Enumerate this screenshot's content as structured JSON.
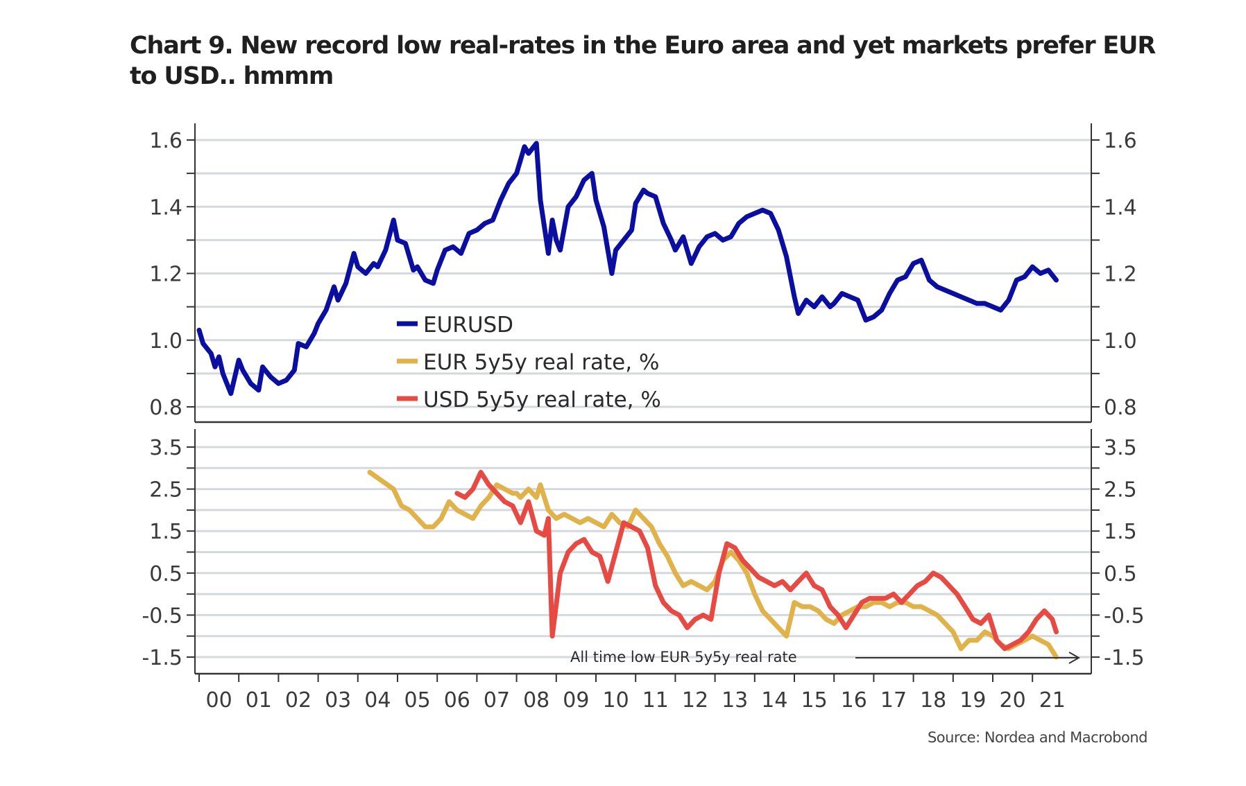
{
  "title": "Chart 9. New record low real-rates in the Euro area and yet markets prefer EUR to USD.. hmmm",
  "source": "Source: Nordea and Macrobond",
  "chart_data": [
    {
      "type": "line",
      "panel": "top",
      "title": "EURUSD",
      "ylim": [
        0.75,
        1.65
      ],
      "yticks": [
        0.8,
        1.0,
        1.2,
        1.4,
        1.6
      ],
      "ytick_labels": [
        "0.8",
        "1.0",
        "1.2",
        "1.4",
        "1.6"
      ],
      "minor_yticks": [
        0.9,
        1.1,
        1.3,
        1.5
      ],
      "grid": true,
      "xlim": [
        2000.0,
        2021.75
      ],
      "series": [
        {
          "name": "EURUSD",
          "color": "#0a0fa0",
          "x": [
            2000.0,
            2000.1,
            2000.3,
            2000.4,
            2000.5,
            2000.6,
            2000.7,
            2000.8,
            2001.0,
            2001.1,
            2001.3,
            2001.5,
            2001.6,
            2001.8,
            2002.0,
            2002.2,
            2002.4,
            2002.5,
            2002.7,
            2002.9,
            2003.0,
            2003.2,
            2003.4,
            2003.5,
            2003.7,
            2003.9,
            2004.0,
            2004.2,
            2004.4,
            2004.5,
            2004.7,
            2004.9,
            2005.0,
            2005.2,
            2005.4,
            2005.5,
            2005.7,
            2005.9,
            2006.0,
            2006.2,
            2006.4,
            2006.6,
            2006.8,
            2007.0,
            2007.2,
            2007.4,
            2007.6,
            2007.8,
            2008.0,
            2008.2,
            2008.3,
            2008.5,
            2008.6,
            2008.8,
            2008.9,
            2009.0,
            2009.1,
            2009.3,
            2009.5,
            2009.7,
            2009.9,
            2010.0,
            2010.2,
            2010.4,
            2010.5,
            2010.7,
            2010.9,
            2011.0,
            2011.2,
            2011.3,
            2011.5,
            2011.7,
            2011.9,
            2012.0,
            2012.2,
            2012.4,
            2012.6,
            2012.8,
            2013.0,
            2013.2,
            2013.4,
            2013.6,
            2013.8,
            2014.0,
            2014.2,
            2014.4,
            2014.6,
            2014.8,
            2015.0,
            2015.1,
            2015.3,
            2015.5,
            2015.7,
            2015.9,
            2016.0,
            2016.2,
            2016.4,
            2016.6,
            2016.8,
            2017.0,
            2017.2,
            2017.4,
            2017.6,
            2017.8,
            2018.0,
            2018.2,
            2018.4,
            2018.6,
            2018.8,
            2019.0,
            2019.2,
            2019.4,
            2019.6,
            2019.8,
            2020.0,
            2020.2,
            2020.4,
            2020.6,
            2020.8,
            2021.0,
            2021.2,
            2021.4,
            2021.6
          ],
          "y": [
            1.03,
            0.99,
            0.96,
            0.92,
            0.95,
            0.9,
            0.87,
            0.84,
            0.94,
            0.91,
            0.87,
            0.85,
            0.92,
            0.89,
            0.87,
            0.88,
            0.91,
            0.99,
            0.98,
            1.02,
            1.05,
            1.09,
            1.16,
            1.12,
            1.17,
            1.26,
            1.22,
            1.2,
            1.23,
            1.22,
            1.27,
            1.36,
            1.3,
            1.29,
            1.21,
            1.22,
            1.18,
            1.17,
            1.21,
            1.27,
            1.28,
            1.26,
            1.32,
            1.33,
            1.35,
            1.36,
            1.42,
            1.47,
            1.5,
            1.58,
            1.56,
            1.59,
            1.42,
            1.26,
            1.36,
            1.3,
            1.27,
            1.4,
            1.43,
            1.48,
            1.5,
            1.42,
            1.34,
            1.2,
            1.27,
            1.3,
            1.33,
            1.41,
            1.45,
            1.44,
            1.43,
            1.35,
            1.3,
            1.27,
            1.31,
            1.23,
            1.28,
            1.31,
            1.32,
            1.3,
            1.31,
            1.35,
            1.37,
            1.38,
            1.39,
            1.38,
            1.33,
            1.25,
            1.13,
            1.08,
            1.12,
            1.1,
            1.13,
            1.1,
            1.11,
            1.14,
            1.13,
            1.12,
            1.06,
            1.07,
            1.09,
            1.14,
            1.18,
            1.19,
            1.23,
            1.24,
            1.18,
            1.16,
            1.15,
            1.14,
            1.13,
            1.12,
            1.11,
            1.11,
            1.1,
            1.09,
            1.12,
            1.18,
            1.19,
            1.22,
            1.2,
            1.21,
            1.18
          ]
        }
      ],
      "legend": {
        "position": "lower-center",
        "entries": [
          {
            "label": "EURUSD",
            "color": "#0a0fa0"
          },
          {
            "label": "EUR 5y5y real rate, %",
            "color": "#e0b24a"
          },
          {
            "label": "USD 5y5y real rate, %",
            "color": "#e64a42"
          }
        ]
      }
    },
    {
      "type": "line",
      "panel": "bottom",
      "ylim": [
        -2.0,
        4.0
      ],
      "yticks": [
        -1.5,
        -0.5,
        0.5,
        1.5,
        2.5,
        3.5
      ],
      "ytick_labels": [
        "-1.5",
        "-0.5",
        "0.5",
        "1.5",
        "2.5",
        "3.5"
      ],
      "minor_yticks": [
        -1.0,
        0.0,
        1.0,
        2.0,
        3.0
      ],
      "grid": true,
      "xlim": [
        2000.0,
        2021.75
      ],
      "xticks": [
        "00",
        "01",
        "02",
        "03",
        "04",
        "05",
        "06",
        "07",
        "08",
        "09",
        "10",
        "11",
        "12",
        "13",
        "14",
        "15",
        "16",
        "17",
        "18",
        "19",
        "20",
        "21"
      ],
      "annotation": "All time low EUR 5y5y real rate",
      "series": [
        {
          "name": "EUR 5y5y real rate, %",
          "color": "#e0b24a",
          "x": [
            2004.3,
            2004.6,
            2004.9,
            2005.1,
            2005.3,
            2005.5,
            2005.7,
            2005.9,
            2006.1,
            2006.3,
            2006.5,
            2006.7,
            2006.9,
            2007.1,
            2007.3,
            2007.5,
            2007.7,
            2007.9,
            2008.0,
            2008.1,
            2008.3,
            2008.5,
            2008.6,
            2008.8,
            2009.0,
            2009.2,
            2009.4,
            2009.6,
            2009.8,
            2010.0,
            2010.2,
            2010.4,
            2010.6,
            2010.8,
            2011.0,
            2011.2,
            2011.4,
            2011.6,
            2011.8,
            2012.0,
            2012.2,
            2012.4,
            2012.6,
            2012.8,
            2013.0,
            2013.2,
            2013.4,
            2013.6,
            2013.8,
            2014.0,
            2014.2,
            2014.4,
            2014.6,
            2014.8,
            2015.0,
            2015.2,
            2015.4,
            2015.6,
            2015.8,
            2016.0,
            2016.2,
            2016.4,
            2016.6,
            2016.8,
            2017.0,
            2017.2,
            2017.4,
            2017.6,
            2017.8,
            2018.0,
            2018.2,
            2018.4,
            2018.6,
            2018.8,
            2019.0,
            2019.2,
            2019.4,
            2019.6,
            2019.8,
            2020.0,
            2020.2,
            2020.4,
            2020.6,
            2020.8,
            2021.0,
            2021.2,
            2021.4,
            2021.6
          ],
          "y": [
            2.9,
            2.7,
            2.5,
            2.1,
            2.0,
            1.8,
            1.6,
            1.6,
            1.8,
            2.2,
            2.0,
            1.9,
            1.8,
            2.1,
            2.3,
            2.6,
            2.5,
            2.4,
            2.4,
            2.3,
            2.5,
            2.3,
            2.6,
            2.0,
            1.8,
            1.9,
            1.8,
            1.7,
            1.8,
            1.7,
            1.6,
            1.9,
            1.7,
            1.6,
            2.0,
            1.8,
            1.6,
            1.2,
            0.9,
            0.5,
            0.2,
            0.3,
            0.2,
            0.1,
            0.3,
            0.8,
            1.0,
            0.8,
            0.5,
            0.0,
            -0.4,
            -0.6,
            -0.8,
            -1.0,
            -0.2,
            -0.3,
            -0.3,
            -0.4,
            -0.6,
            -0.7,
            -0.5,
            -0.4,
            -0.3,
            -0.3,
            -0.2,
            -0.2,
            -0.3,
            -0.2,
            -0.2,
            -0.3,
            -0.3,
            -0.4,
            -0.5,
            -0.7,
            -0.9,
            -1.3,
            -1.1,
            -1.1,
            -0.9,
            -1.0,
            -1.2,
            -1.3,
            -1.2,
            -1.1,
            -1.0,
            -1.1,
            -1.2,
            -1.5
          ]
        },
        {
          "name": "USD 5y5y real rate, %",
          "color": "#e64a42",
          "x": [
            2006.5,
            2006.7,
            2006.9,
            2007.1,
            2007.3,
            2007.5,
            2007.7,
            2007.9,
            2008.1,
            2008.3,
            2008.5,
            2008.7,
            2008.8,
            2008.9,
            2009.1,
            2009.3,
            2009.5,
            2009.7,
            2009.9,
            2010.1,
            2010.3,
            2010.5,
            2010.7,
            2010.9,
            2011.1,
            2011.3,
            2011.5,
            2011.7,
            2011.9,
            2012.1,
            2012.3,
            2012.5,
            2012.7,
            2012.9,
            2013.1,
            2013.3,
            2013.5,
            2013.7,
            2013.9,
            2014.1,
            2014.3,
            2014.5,
            2014.7,
            2014.9,
            2015.1,
            2015.3,
            2015.5,
            2015.7,
            2015.9,
            2016.1,
            2016.3,
            2016.5,
            2016.7,
            2016.9,
            2017.1,
            2017.3,
            2017.5,
            2017.7,
            2017.9,
            2018.1,
            2018.3,
            2018.5,
            2018.7,
            2018.9,
            2019.1,
            2019.3,
            2019.5,
            2019.7,
            2019.9,
            2020.1,
            2020.3,
            2020.5,
            2020.7,
            2020.9,
            2021.1,
            2021.3,
            2021.5,
            2021.6
          ],
          "y": [
            2.4,
            2.3,
            2.5,
            2.9,
            2.6,
            2.4,
            2.2,
            2.1,
            1.7,
            2.2,
            1.5,
            1.4,
            1.8,
            -1.0,
            0.5,
            1.0,
            1.2,
            1.3,
            1.0,
            0.9,
            0.3,
            1.0,
            1.7,
            1.6,
            1.5,
            1.1,
            0.2,
            -0.2,
            -0.4,
            -0.5,
            -0.8,
            -0.6,
            -0.5,
            -0.6,
            0.5,
            1.2,
            1.1,
            0.8,
            0.6,
            0.4,
            0.3,
            0.2,
            0.3,
            0.1,
            0.3,
            0.5,
            0.2,
            0.1,
            -0.3,
            -0.5,
            -0.8,
            -0.5,
            -0.2,
            -0.1,
            -0.1,
            -0.1,
            0.0,
            -0.2,
            0.0,
            0.2,
            0.3,
            0.5,
            0.4,
            0.2,
            0.0,
            -0.3,
            -0.6,
            -0.7,
            -0.5,
            -1.1,
            -1.3,
            -1.2,
            -1.1,
            -0.9,
            -0.6,
            -0.4,
            -0.6,
            -0.9
          ]
        }
      ]
    }
  ]
}
